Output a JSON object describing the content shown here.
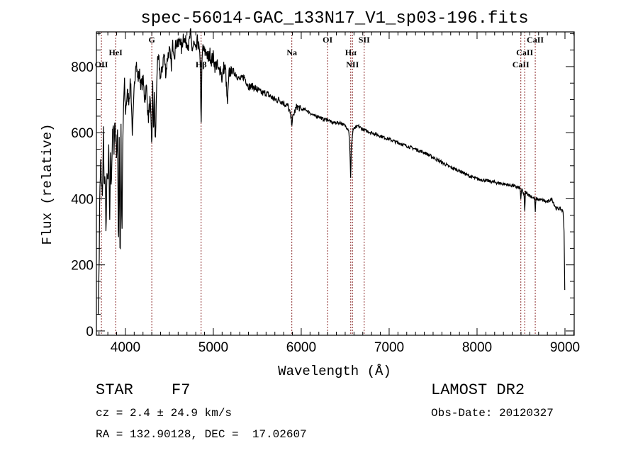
{
  "chart_data": {
    "type": "line",
    "title": "spec-56014-GAC_133N17_V1_sp03-196.fits",
    "xlabel": "Wavelength (Å)",
    "ylabel": "Flux (relative)",
    "xlim": [
      3670,
      9105
    ],
    "ylim": [
      -13,
      905
    ],
    "xticks": [
      4000,
      5000,
      6000,
      7000,
      8000,
      9000
    ],
    "yticks": [
      0,
      200,
      400,
      600,
      800
    ],
    "grid": false,
    "line_color": "#000000",
    "marker_color": "#8b2a2a",
    "spectral_lines": [
      {
        "name": "OII",
        "wavelength": 3727,
        "row": 2
      },
      {
        "name": "HeI",
        "wavelength": 3889,
        "row": 1
      },
      {
        "name": "G",
        "wavelength": 4300,
        "row": 0
      },
      {
        "name": "Hβ",
        "wavelength": 4861,
        "row": 2
      },
      {
        "name": "Na",
        "wavelength": 5893,
        "row": 1
      },
      {
        "name": "OI",
        "wavelength": 6300,
        "row": 0
      },
      {
        "name": "Hα",
        "wavelength": 6563,
        "row": 1
      },
      {
        "name": "NII",
        "wavelength": 6583,
        "row": 2
      },
      {
        "name": "SII",
        "wavelength": 6716,
        "row": 0
      },
      {
        "name": "CaII",
        "wavelength": 8498,
        "row": 2
      },
      {
        "name": "CaII",
        "wavelength": 8542,
        "row": 1
      },
      {
        "name": "CaII",
        "wavelength": 8662,
        "row": 0
      }
    ],
    "x": [
      3690,
      3700,
      3710,
      3720,
      3730,
      3740,
      3750,
      3760,
      3770,
      3780,
      3790,
      3800,
      3810,
      3820,
      3830,
      3840,
      3850,
      3860,
      3870,
      3880,
      3900,
      3910,
      3920,
      3930,
      3940,
      3950,
      3960,
      3970,
      3980,
      3990,
      4000,
      4020,
      4040,
      4060,
      4080,
      4100,
      4120,
      4140,
      4160,
      4180,
      4200,
      4220,
      4240,
      4260,
      4280,
      4300,
      4310,
      4320,
      4330,
      4340,
      4360,
      4380,
      4400,
      4420,
      4440,
      4460,
      4480,
      4500,
      4520,
      4540,
      4560,
      4580,
      4600,
      4620,
      4640,
      4660,
      4680,
      4700,
      4720,
      4740,
      4760,
      4780,
      4800,
      4820,
      4840,
      4855,
      4861,
      4868,
      4880,
      4900,
      4920,
      4940,
      4960,
      4980,
      5000,
      5020,
      5040,
      5060,
      5080,
      5100,
      5120,
      5140,
      5160,
      5180,
      5200,
      5250,
      5300,
      5350,
      5400,
      5450,
      5500,
      5550,
      5600,
      5650,
      5700,
      5750,
      5800,
      5850,
      5880,
      5893,
      5900,
      5920,
      5950,
      6000,
      6050,
      6100,
      6150,
      6200,
      6250,
      6300,
      6350,
      6400,
      6450,
      6500,
      6540,
      6555,
      6563,
      6570,
      6590,
      6650,
      6700,
      6800,
      6900,
      7000,
      7100,
      7200,
      7300,
      7400,
      7500,
      7600,
      7700,
      7800,
      7900,
      8000,
      8100,
      8200,
      8300,
      8400,
      8490,
      8498,
      8510,
      8535,
      8542,
      8550,
      8600,
      8655,
      8662,
      8670,
      8750,
      8800,
      8850,
      8900,
      8950,
      8980,
      8990,
      9000
    ],
    "y": [
      50,
      200,
      450,
      520,
      430,
      400,
      600,
      420,
      480,
      260,
      500,
      420,
      560,
      300,
      520,
      450,
      560,
      620,
      560,
      640,
      540,
      600,
      230,
      600,
      170,
      620,
      250,
      560,
      700,
      740,
      660,
      720,
      700,
      760,
      590,
      730,
      830,
      760,
      780,
      740,
      760,
      700,
      740,
      640,
      700,
      560,
      740,
      600,
      720,
      550,
      800,
      820,
      760,
      800,
      840,
      780,
      830,
      850,
      800,
      870,
      840,
      880,
      860,
      890,
      850,
      900,
      870,
      880,
      860,
      900,
      850,
      870,
      840,
      880,
      850,
      780,
      590,
      780,
      860,
      840,
      850,
      820,
      840,
      820,
      830,
      800,
      810,
      780,
      800,
      760,
      800,
      790,
      680,
      780,
      790,
      780,
      760,
      770,
      740,
      740,
      730,
      720,
      720,
      710,
      700,
      700,
      690,
      680,
      650,
      630,
      640,
      660,
      680,
      670,
      670,
      660,
      650,
      650,
      640,
      640,
      630,
      630,
      630,
      620,
      610,
      540,
      450,
      560,
      610,
      620,
      610,
      600,
      590,
      580,
      570,
      560,
      550,
      540,
      525,
      510,
      495,
      485,
      470,
      460,
      455,
      450,
      445,
      440,
      432,
      400,
      430,
      410,
      360,
      420,
      410,
      400,
      360,
      400,
      395,
      390,
      400,
      370,
      370,
      360,
      300,
      80
    ]
  },
  "footer": {
    "object_type": "STAR",
    "subclass": "F7",
    "redshift": "cz = 2.4 ± 24.9 km/s",
    "coords": "RA = 132.90128, DEC =  17.02607",
    "survey": "LAMOST DR2",
    "obs_date": "Obs-Date: 20120327"
  }
}
